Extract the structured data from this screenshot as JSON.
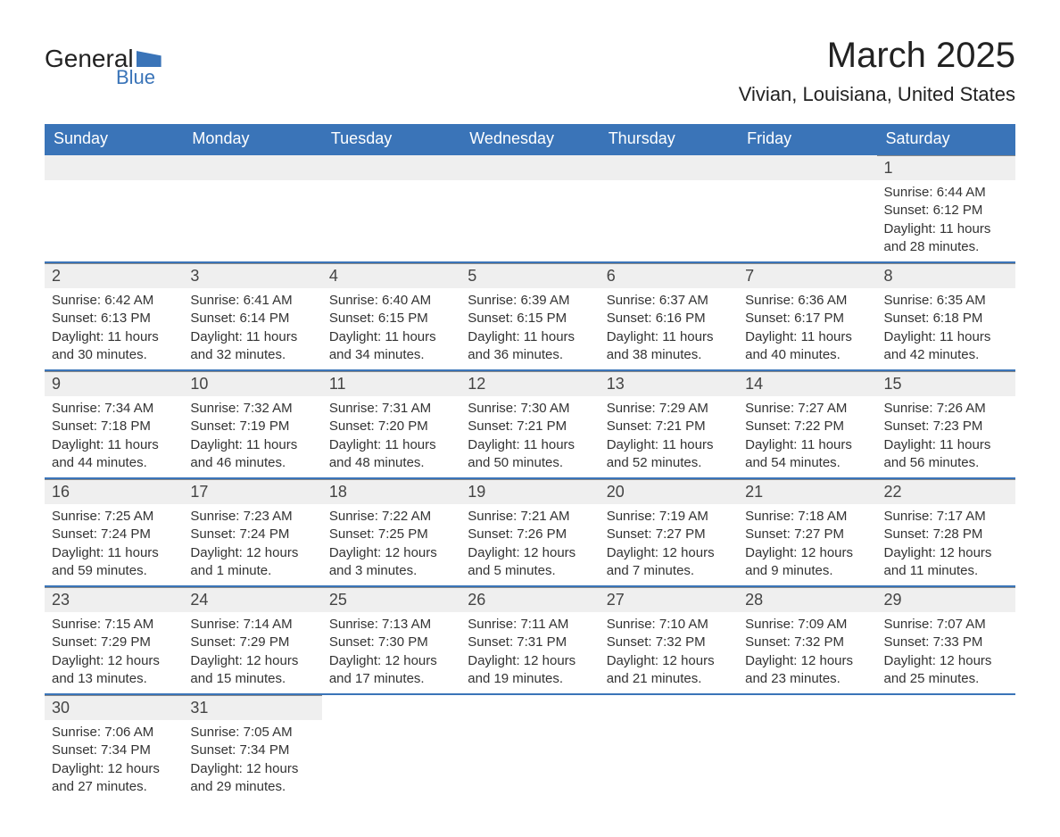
{
  "logo": {
    "text_general": "General",
    "text_blue": "Blue"
  },
  "header": {
    "month_title": "March 2025",
    "location": "Vivian, Louisiana, United States"
  },
  "colors": {
    "header_bg": "#3a74b8",
    "header_text": "#ffffff",
    "day_number_bg": "#efefef",
    "border": "#3a74b8",
    "text": "#333333"
  },
  "day_labels": [
    "Sunday",
    "Monday",
    "Tuesday",
    "Wednesday",
    "Thursday",
    "Friday",
    "Saturday"
  ],
  "weeks": [
    [
      null,
      null,
      null,
      null,
      null,
      null,
      {
        "day": "1",
        "sunrise": "Sunrise: 6:44 AM",
        "sunset": "Sunset: 6:12 PM",
        "daylight1": "Daylight: 11 hours",
        "daylight2": "and 28 minutes."
      }
    ],
    [
      {
        "day": "2",
        "sunrise": "Sunrise: 6:42 AM",
        "sunset": "Sunset: 6:13 PM",
        "daylight1": "Daylight: 11 hours",
        "daylight2": "and 30 minutes."
      },
      {
        "day": "3",
        "sunrise": "Sunrise: 6:41 AM",
        "sunset": "Sunset: 6:14 PM",
        "daylight1": "Daylight: 11 hours",
        "daylight2": "and 32 minutes."
      },
      {
        "day": "4",
        "sunrise": "Sunrise: 6:40 AM",
        "sunset": "Sunset: 6:15 PM",
        "daylight1": "Daylight: 11 hours",
        "daylight2": "and 34 minutes."
      },
      {
        "day": "5",
        "sunrise": "Sunrise: 6:39 AM",
        "sunset": "Sunset: 6:15 PM",
        "daylight1": "Daylight: 11 hours",
        "daylight2": "and 36 minutes."
      },
      {
        "day": "6",
        "sunrise": "Sunrise: 6:37 AM",
        "sunset": "Sunset: 6:16 PM",
        "daylight1": "Daylight: 11 hours",
        "daylight2": "and 38 minutes."
      },
      {
        "day": "7",
        "sunrise": "Sunrise: 6:36 AM",
        "sunset": "Sunset: 6:17 PM",
        "daylight1": "Daylight: 11 hours",
        "daylight2": "and 40 minutes."
      },
      {
        "day": "8",
        "sunrise": "Sunrise: 6:35 AM",
        "sunset": "Sunset: 6:18 PM",
        "daylight1": "Daylight: 11 hours",
        "daylight2": "and 42 minutes."
      }
    ],
    [
      {
        "day": "9",
        "sunrise": "Sunrise: 7:34 AM",
        "sunset": "Sunset: 7:18 PM",
        "daylight1": "Daylight: 11 hours",
        "daylight2": "and 44 minutes."
      },
      {
        "day": "10",
        "sunrise": "Sunrise: 7:32 AM",
        "sunset": "Sunset: 7:19 PM",
        "daylight1": "Daylight: 11 hours",
        "daylight2": "and 46 minutes."
      },
      {
        "day": "11",
        "sunrise": "Sunrise: 7:31 AM",
        "sunset": "Sunset: 7:20 PM",
        "daylight1": "Daylight: 11 hours",
        "daylight2": "and 48 minutes."
      },
      {
        "day": "12",
        "sunrise": "Sunrise: 7:30 AM",
        "sunset": "Sunset: 7:21 PM",
        "daylight1": "Daylight: 11 hours",
        "daylight2": "and 50 minutes."
      },
      {
        "day": "13",
        "sunrise": "Sunrise: 7:29 AM",
        "sunset": "Sunset: 7:21 PM",
        "daylight1": "Daylight: 11 hours",
        "daylight2": "and 52 minutes."
      },
      {
        "day": "14",
        "sunrise": "Sunrise: 7:27 AM",
        "sunset": "Sunset: 7:22 PM",
        "daylight1": "Daylight: 11 hours",
        "daylight2": "and 54 minutes."
      },
      {
        "day": "15",
        "sunrise": "Sunrise: 7:26 AM",
        "sunset": "Sunset: 7:23 PM",
        "daylight1": "Daylight: 11 hours",
        "daylight2": "and 56 minutes."
      }
    ],
    [
      {
        "day": "16",
        "sunrise": "Sunrise: 7:25 AM",
        "sunset": "Sunset: 7:24 PM",
        "daylight1": "Daylight: 11 hours",
        "daylight2": "and 59 minutes."
      },
      {
        "day": "17",
        "sunrise": "Sunrise: 7:23 AM",
        "sunset": "Sunset: 7:24 PM",
        "daylight1": "Daylight: 12 hours",
        "daylight2": "and 1 minute."
      },
      {
        "day": "18",
        "sunrise": "Sunrise: 7:22 AM",
        "sunset": "Sunset: 7:25 PM",
        "daylight1": "Daylight: 12 hours",
        "daylight2": "and 3 minutes."
      },
      {
        "day": "19",
        "sunrise": "Sunrise: 7:21 AM",
        "sunset": "Sunset: 7:26 PM",
        "daylight1": "Daylight: 12 hours",
        "daylight2": "and 5 minutes."
      },
      {
        "day": "20",
        "sunrise": "Sunrise: 7:19 AM",
        "sunset": "Sunset: 7:27 PM",
        "daylight1": "Daylight: 12 hours",
        "daylight2": "and 7 minutes."
      },
      {
        "day": "21",
        "sunrise": "Sunrise: 7:18 AM",
        "sunset": "Sunset: 7:27 PM",
        "daylight1": "Daylight: 12 hours",
        "daylight2": "and 9 minutes."
      },
      {
        "day": "22",
        "sunrise": "Sunrise: 7:17 AM",
        "sunset": "Sunset: 7:28 PM",
        "daylight1": "Daylight: 12 hours",
        "daylight2": "and 11 minutes."
      }
    ],
    [
      {
        "day": "23",
        "sunrise": "Sunrise: 7:15 AM",
        "sunset": "Sunset: 7:29 PM",
        "daylight1": "Daylight: 12 hours",
        "daylight2": "and 13 minutes."
      },
      {
        "day": "24",
        "sunrise": "Sunrise: 7:14 AM",
        "sunset": "Sunset: 7:29 PM",
        "daylight1": "Daylight: 12 hours",
        "daylight2": "and 15 minutes."
      },
      {
        "day": "25",
        "sunrise": "Sunrise: 7:13 AM",
        "sunset": "Sunset: 7:30 PM",
        "daylight1": "Daylight: 12 hours",
        "daylight2": "and 17 minutes."
      },
      {
        "day": "26",
        "sunrise": "Sunrise: 7:11 AM",
        "sunset": "Sunset: 7:31 PM",
        "daylight1": "Daylight: 12 hours",
        "daylight2": "and 19 minutes."
      },
      {
        "day": "27",
        "sunrise": "Sunrise: 7:10 AM",
        "sunset": "Sunset: 7:32 PM",
        "daylight1": "Daylight: 12 hours",
        "daylight2": "and 21 minutes."
      },
      {
        "day": "28",
        "sunrise": "Sunrise: 7:09 AM",
        "sunset": "Sunset: 7:32 PM",
        "daylight1": "Daylight: 12 hours",
        "daylight2": "and 23 minutes."
      },
      {
        "day": "29",
        "sunrise": "Sunrise: 7:07 AM",
        "sunset": "Sunset: 7:33 PM",
        "daylight1": "Daylight: 12 hours",
        "daylight2": "and 25 minutes."
      }
    ],
    [
      {
        "day": "30",
        "sunrise": "Sunrise: 7:06 AM",
        "sunset": "Sunset: 7:34 PM",
        "daylight1": "Daylight: 12 hours",
        "daylight2": "and 27 minutes."
      },
      {
        "day": "31",
        "sunrise": "Sunrise: 7:05 AM",
        "sunset": "Sunset: 7:34 PM",
        "daylight1": "Daylight: 12 hours",
        "daylight2": "and 29 minutes."
      },
      null,
      null,
      null,
      null,
      null
    ]
  ]
}
